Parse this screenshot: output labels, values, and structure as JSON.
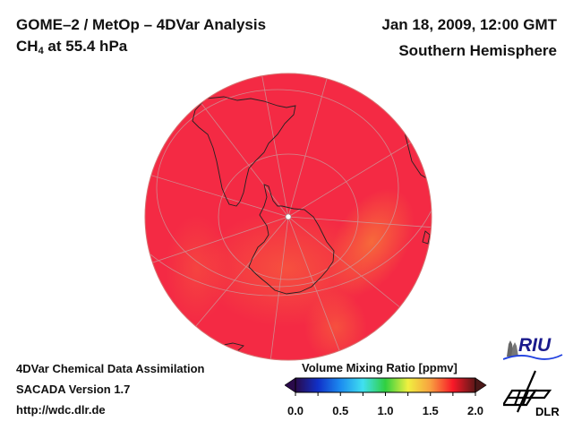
{
  "header": {
    "title_line1": "GOME–2 / MetOp – 4DVar Analysis",
    "species": "CH",
    "species_sub": "4",
    "level": " at 55.4 hPa",
    "datetime": "Jan 18, 2009, 12:00 GMT",
    "region": "Southern Hemisphere"
  },
  "footer": {
    "line1": "4DVar Chemical Data Assimilation",
    "line2": "SACADA Version 1.7",
    "line3": "http://wdc.dlr.de"
  },
  "colorbar": {
    "label": "Volume Mixing Ratio [ppmv]",
    "ticks": [
      "0.0",
      "0.5",
      "1.0",
      "1.5",
      "2.0"
    ],
    "range": [
      0.0,
      2.0
    ],
    "colors": [
      "#2a0a4a",
      "#1030c8",
      "#1c8cf0",
      "#40e0f0",
      "#30d040",
      "#f0f040",
      "#f8a040",
      "#f81828",
      "#5a1818"
    ]
  },
  "map": {
    "projection": "orthographic, south pole centered",
    "field_color_main": "#f42a44",
    "field_color_high": "#f6603c",
    "approx_value_range_ppmv": [
      1.55,
      1.75
    ]
  },
  "logos": {
    "riu": "RIU",
    "dlr": "DLR"
  }
}
